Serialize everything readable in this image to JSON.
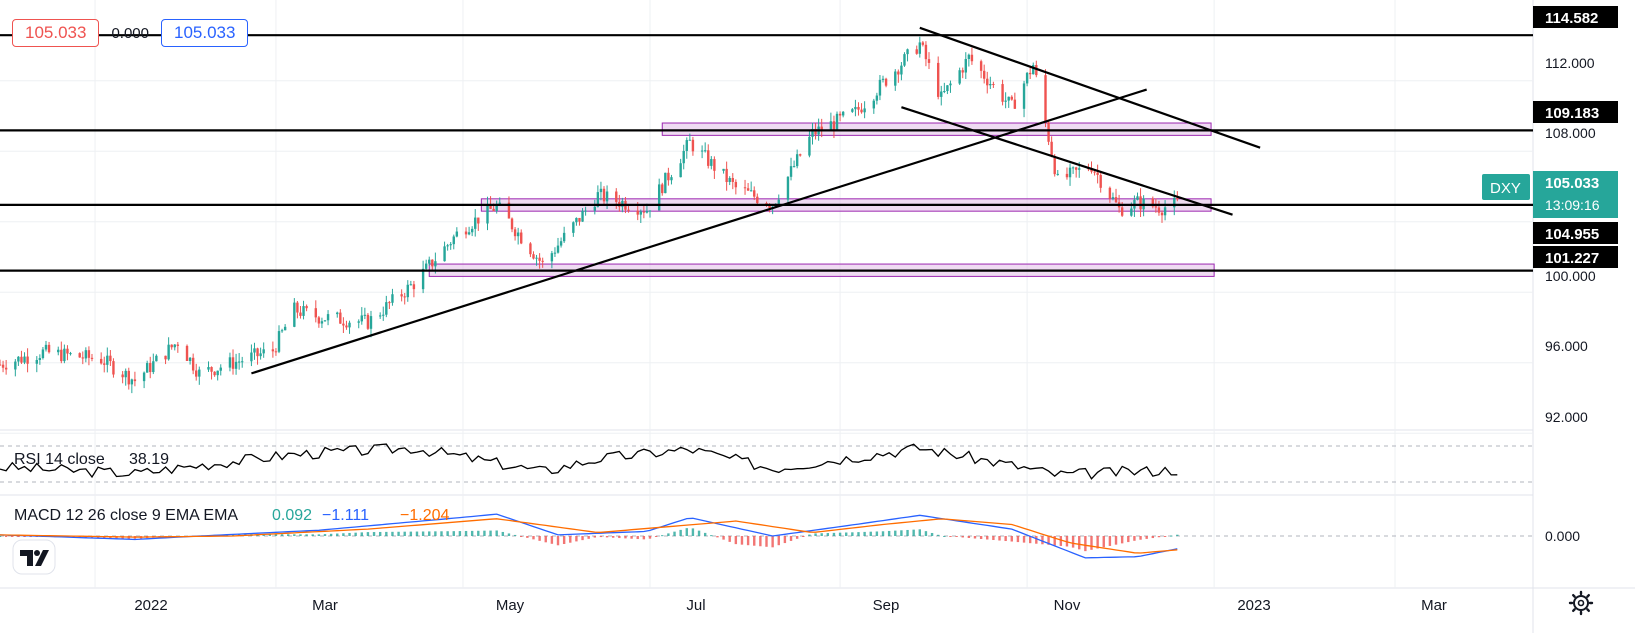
{
  "header": {
    "bid_value": "105.033",
    "spread_value": "0.000",
    "ask_value": "105.033"
  },
  "symbol": {
    "ticker": "DXY",
    "price_label": "105.033",
    "countdown": "13:09:16"
  },
  "level_labels": [
    "114.582",
    "109.183",
    "104.955",
    "101.227"
  ],
  "price_axis": {
    "ticks": [
      "112.000",
      "108.000",
      "100.000",
      "96.000",
      "92.000"
    ]
  },
  "time_axis": {
    "ticks": [
      "2022",
      "Mar",
      "May",
      "Jul",
      "Sep",
      "Nov",
      "2023",
      "Mar"
    ]
  },
  "rsi_panel": {
    "label": "RSI 14 close",
    "value": "38.19"
  },
  "macd_panel": {
    "label": "MACD 12 26 close 9 EMA EMA",
    "hist_value": "0.092",
    "macd_value": "−1.111",
    "signal_value": "−1.204",
    "axis_tick": "0.000"
  },
  "colors": {
    "up": "#26a69a",
    "down": "#ef5350",
    "zone_fill": "#e1bee7",
    "zone_stroke": "#9c27b0",
    "macd_line": "#2962ff",
    "signal_line": "#ff6d00",
    "symbol_tag": "#26a69a"
  },
  "icons": {
    "logo": "tradingview-logo-icon",
    "settings": "gear-icon"
  },
  "chart_data": {
    "type": "candlestick",
    "instrument": "DXY",
    "period": "daily",
    "x_range": [
      "2021-12-01",
      "2023-04-15"
    ],
    "y_range": [
      89.5,
      115.5
    ],
    "horizontal_levels": [
      114.582,
      109.183,
      104.955,
      101.227
    ],
    "zones": [
      {
        "from": "2022-07-05",
        "to": "2022-12-31",
        "low": 108.9,
        "high": 109.6
      },
      {
        "from": "2022-05-07",
        "to": "2022-12-31",
        "low": 104.6,
        "high": 105.3
      },
      {
        "from": "2022-04-20",
        "to": "2023-01-01",
        "low": 100.9,
        "high": 101.6
      }
    ],
    "trendlines": [
      {
        "from": [
          "2022-02-21",
          95.4
        ],
        "to": [
          "2022-12-10",
          111.5
        ]
      },
      {
        "from": [
          "2022-09-27",
          115.0
        ],
        "to": [
          "2023-01-16",
          108.2
        ]
      },
      {
        "from": [
          "2022-09-21",
          110.5
        ],
        "to": [
          "2023-01-07",
          104.4
        ]
      }
    ],
    "close_path": [
      [
        "2021-12-01",
        95.9
      ],
      [
        "2021-12-15",
        96.6
      ],
      [
        "2022-01-03",
        96.2
      ],
      [
        "2022-01-14",
        95.0
      ],
      [
        "2022-01-28",
        97.2
      ],
      [
        "2022-02-04",
        95.4
      ],
      [
        "2022-02-15",
        96.0
      ],
      [
        "2022-02-28",
        96.7
      ],
      [
        "2022-03-07",
        99.0
      ],
      [
        "2022-03-15",
        98.6
      ],
      [
        "2022-03-31",
        98.3
      ],
      [
        "2022-04-15",
        100.5
      ],
      [
        "2022-04-30",
        103.5
      ],
      [
        "2022-05-12",
        104.9
      ],
      [
        "2022-05-27",
        101.6
      ],
      [
        "2022-06-14",
        105.5
      ],
      [
        "2022-06-30",
        104.7
      ],
      [
        "2022-07-14",
        108.5
      ],
      [
        "2022-07-29",
        105.9
      ],
      [
        "2022-08-10",
        105.0
      ],
      [
        "2022-08-23",
        109.0
      ],
      [
        "2022-09-06",
        110.2
      ],
      [
        "2022-09-27",
        114.1
      ],
      [
        "2022-10-04",
        111.0
      ],
      [
        "2022-10-13",
        113.3
      ],
      [
        "2022-10-27",
        110.5
      ],
      [
        "2022-11-03",
        112.9
      ],
      [
        "2022-11-11",
        106.3
      ],
      [
        "2022-11-22",
        107.2
      ],
      [
        "2022-12-01",
        104.7
      ],
      [
        "2022-12-07",
        105.1
      ],
      [
        "2022-12-15",
        104.8
      ],
      [
        "2022-12-20",
        105.0
      ]
    ],
    "rsi_path": [
      [
        "2021-12-01",
        0.42
      ],
      [
        "2022-01-14",
        0.32
      ],
      [
        "2022-02-04",
        0.45
      ],
      [
        "2022-03-07",
        0.62
      ],
      [
        "2022-04-15",
        0.72
      ],
      [
        "2022-05-27",
        0.35
      ],
      [
        "2022-06-14",
        0.55
      ],
      [
        "2022-07-14",
        0.7
      ],
      [
        "2022-08-10",
        0.4
      ],
      [
        "2022-09-27",
        0.72
      ],
      [
        "2022-10-27",
        0.45
      ],
      [
        "2022-11-11",
        0.3
      ],
      [
        "2022-12-20",
        0.38
      ]
    ],
    "macd_path": [
      [
        "2021-12-01",
        0.1
      ],
      [
        "2022-01-14",
        -0.3
      ],
      [
        "2022-02-04",
        0.0
      ],
      [
        "2022-03-15",
        0.5
      ],
      [
        "2022-04-30",
        1.6
      ],
      [
        "2022-05-12",
        1.9
      ],
      [
        "2022-06-01",
        0.1
      ],
      [
        "2022-06-30",
        0.4
      ],
      [
        "2022-07-14",
        1.6
      ],
      [
        "2022-08-10",
        0.0
      ],
      [
        "2022-09-06",
        1.0
      ],
      [
        "2022-09-27",
        1.8
      ],
      [
        "2022-10-27",
        0.6
      ],
      [
        "2022-11-20",
        -1.9
      ],
      [
        "2022-12-07",
        -1.8
      ],
      [
        "2022-12-20",
        -1.111
      ]
    ],
    "signal_path": [
      [
        "2021-12-01",
        0.1
      ],
      [
        "2022-01-14",
        -0.1
      ],
      [
        "2022-02-15",
        0.0
      ],
      [
        "2022-03-31",
        0.6
      ],
      [
        "2022-05-12",
        1.5
      ],
      [
        "2022-06-14",
        0.3
      ],
      [
        "2022-07-29",
        1.3
      ],
      [
        "2022-08-23",
        0.3
      ],
      [
        "2022-09-15",
        1.0
      ],
      [
        "2022-10-04",
        1.5
      ],
      [
        "2022-10-27",
        1.0
      ],
      [
        "2022-11-15",
        -0.6
      ],
      [
        "2022-12-07",
        -1.5
      ],
      [
        "2022-12-20",
        -1.204
      ]
    ]
  }
}
